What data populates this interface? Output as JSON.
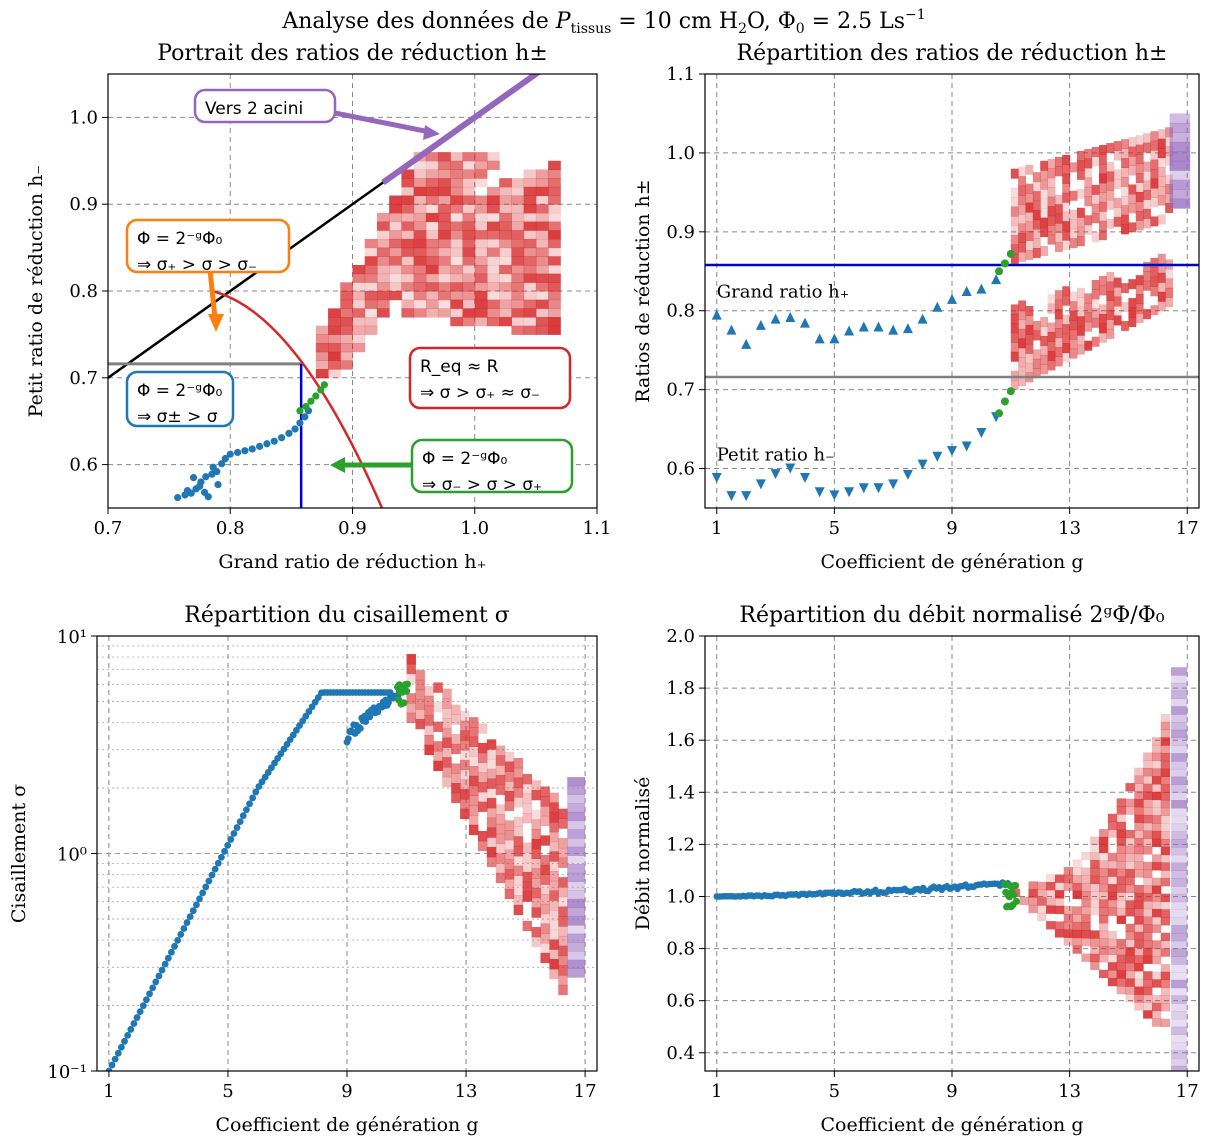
{
  "suptitle": "Analyse des données de P_tissus = 10 cm H₂O, Φ₀ = 2.5 Ls⁻¹",
  "colors": {
    "blue": "#1f77b4",
    "green": "#2ca02c",
    "red": "#d62728",
    "purple": "#9467bd",
    "orange": "#ff7f0e",
    "black": "#000000",
    "gray": "#808080",
    "hline_blue": "#0000cc"
  },
  "chart_data": [
    {
      "type": "scatter",
      "title": "Portrait des ratios de réduction h±",
      "xlabel": "Grand ratio de réduction h₊",
      "ylabel": "Petit ratio de réduction h₋",
      "xlim": [
        0.7,
        1.1
      ],
      "ylim": [
        0.55,
        1.05
      ],
      "xticks": [
        "0.7",
        "0.8",
        "0.9",
        "1.0",
        "1.1"
      ],
      "yticks": [
        "0.6",
        "0.7",
        "0.8",
        "0.9",
        "1.0"
      ],
      "grid": true,
      "annotations": {
        "acini": "Vers 2 acini",
        "orange_l1": "Φ = 2⁻ᵍΦ₀",
        "orange_l2": "⇒ σ₊ > σ > σ₋",
        "blue_l1": "Φ = 2⁻ᵍΦ₀",
        "blue_l2": "⇒ σ± > σ",
        "red_l1": "R_eq ≈ R",
        "red_l2": "⇒ σ > σ₊ ≈ σ₋",
        "green_l1": "Φ = 2⁻ᵍΦ₀",
        "green_l2": "⇒ σ₋ > σ > σ₊"
      },
      "series": [
        {
          "color": "blue",
          "points": [
            [
              0.757,
              0.562
            ],
            [
              0.763,
              0.565
            ],
            [
              0.768,
              0.567
            ],
            [
              0.772,
              0.572
            ],
            [
              0.776,
              0.58
            ],
            [
              0.78,
              0.586
            ],
            [
              0.785,
              0.589
            ],
            [
              0.789,
              0.592
            ],
            [
              0.793,
              0.601
            ],
            [
              0.796,
              0.607
            ],
            [
              0.8,
              0.612
            ],
            [
              0.806,
              0.614
            ],
            [
              0.812,
              0.616
            ],
            [
              0.818,
              0.618
            ],
            [
              0.824,
              0.621
            ],
            [
              0.83,
              0.624
            ],
            [
              0.836,
              0.627
            ],
            [
              0.842,
              0.631
            ],
            [
              0.848,
              0.636
            ],
            [
              0.853,
              0.641
            ],
            [
              0.857,
              0.648
            ],
            [
              0.861,
              0.655
            ],
            [
              0.864,
              0.662
            ]
          ]
        },
        {
          "color": "green",
          "points": [
            [
              0.857,
              0.662
            ],
            [
              0.862,
              0.667
            ],
            [
              0.866,
              0.673
            ],
            [
              0.87,
              0.679
            ],
            [
              0.874,
              0.686
            ],
            [
              0.877,
              0.692
            ]
          ]
        }
      ],
      "lines": [
        {
          "name": "",
          "color": "black",
          "points": [
            [
              0.7,
              0.7
            ],
            [
              1.05,
              1.05
            ]
          ]
        },
        {
          "color": "gray",
          "points": [
            [
              0.7,
              0.716
            ],
            [
              0.858,
              0.716
            ]
          ]
        },
        {
          "color": "hline_blue",
          "points": [
            [
              0.858,
              0.55
            ],
            [
              0.858,
              0.716
            ]
          ]
        },
        {
          "color": "red",
          "circle_radius": 1.127
        },
        {
          "color": "purple",
          "points": [
            [
              0.925,
              0.925
            ],
            [
              1.05,
              1.05
            ]
          ]
        }
      ]
    },
    {
      "type": "scatter",
      "title": "Répartition des ratios de réduction h±",
      "xlabel": "Coefficient de génération g",
      "ylabel": "Ratios de réduction h±",
      "xlim": [
        0.6,
        17.4
      ],
      "ylim": [
        0.55,
        1.1
      ],
      "xticks": [
        "1",
        "5",
        "9",
        "13",
        "17"
      ],
      "yticks": [
        "0.6",
        "0.7",
        "0.8",
        "0.9",
        "1.0",
        "1.1"
      ],
      "grid": true,
      "labels": {
        "big": "Grand ratio h₊",
        "small": "Petit ratio h₋"
      },
      "hlines": [
        {
          "y": 0.858,
          "color": "hline_blue"
        },
        {
          "y": 0.716,
          "color": "gray"
        }
      ]
    },
    {
      "type": "scatter",
      "title": "Répartition du cisaillement σ",
      "xlabel": "Coefficient de génération g",
      "ylabel": "Cisaillement σ",
      "xlim": [
        0.6,
        17.4
      ],
      "ylim": [
        0.1,
        10
      ],
      "yscale": "log",
      "xticks": [
        "1",
        "5",
        "9",
        "13",
        "17"
      ],
      "yticks": [
        "10⁻¹",
        "10⁰",
        "10¹"
      ],
      "grid": true
    },
    {
      "type": "scatter",
      "title": "Répartition du débit normalisé 2ᵍΦ/Φ₀",
      "xlabel": "Coefficient de génération g",
      "ylabel": "Débit normalisé",
      "xlim": [
        0.6,
        17.4
      ],
      "ylim": [
        0.33,
        2.0
      ],
      "xticks": [
        "1",
        "5",
        "9",
        "13",
        "17"
      ],
      "yticks": [
        "0.4",
        "0.6",
        "0.8",
        "1.0",
        "1.2",
        "1.4",
        "1.6",
        "1.8",
        "2.0"
      ],
      "grid": true
    }
  ]
}
